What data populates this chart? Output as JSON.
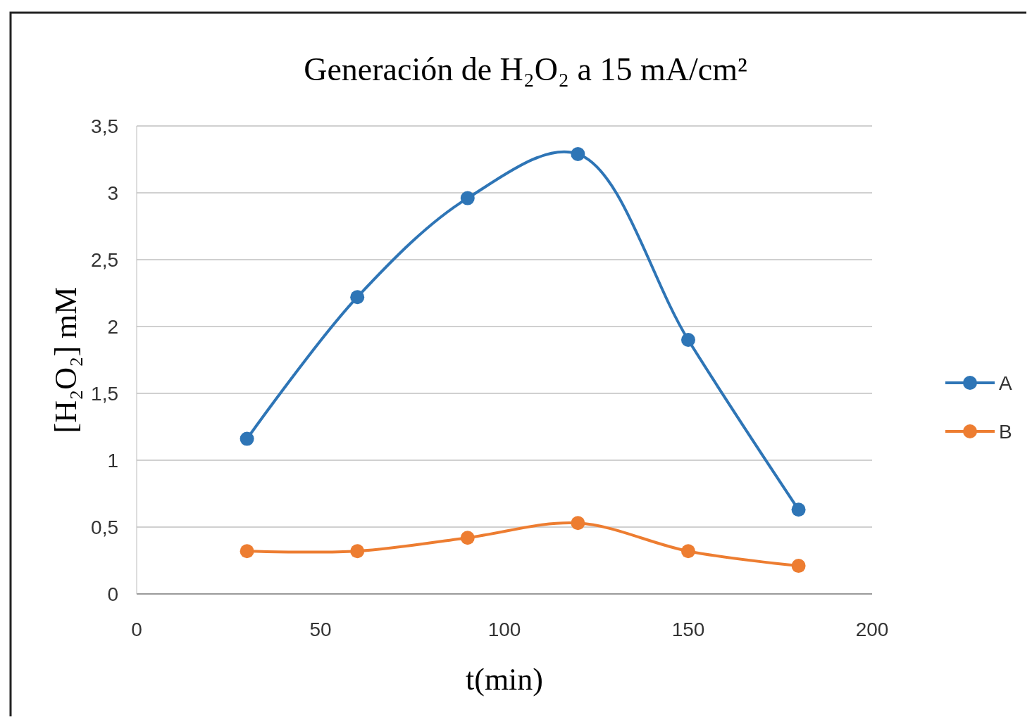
{
  "chart_data": {
    "type": "line",
    "title": "Generación  de H₂O₂  a 15 mA/cm²",
    "xlabel": "t(min)",
    "ylabel": "[H₂O₂] mM",
    "x": [
      30,
      60,
      90,
      120,
      150,
      180
    ],
    "series": [
      {
        "name": "A",
        "color": "#2e75b6",
        "values": [
          1.16,
          2.22,
          2.96,
          3.29,
          1.9,
          0.63
        ]
      },
      {
        "name": "B",
        "color": "#ed7d31",
        "values": [
          0.32,
          0.32,
          0.42,
          0.53,
          0.32,
          0.21
        ]
      }
    ],
    "xlim": [
      0,
      200
    ],
    "xticks": [
      0,
      50,
      100,
      150,
      200
    ],
    "ylim": [
      0,
      3.5
    ],
    "yticks": [
      0,
      {
        "value": 0.5,
        "label": "0,5"
      },
      1,
      {
        "value": 1.5,
        "label": "1,5"
      },
      2,
      {
        "value": 2.5,
        "label": "2,5"
      },
      3,
      {
        "value": 3.5,
        "label": "3,5"
      }
    ],
    "grid": "y",
    "legend": "right",
    "marker": "circle",
    "line_style": "solid"
  }
}
